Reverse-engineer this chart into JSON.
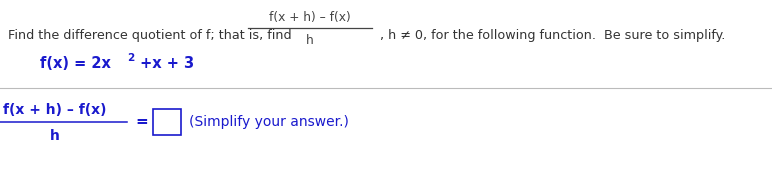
{
  "bg_color": "#ffffff",
  "text_color_black": "#333333",
  "text_color_blue": "#1a1acd",
  "text_color_frac_top": "#444444",
  "line1_black": "Find the difference quotient of f; that is, find",
  "line1_frac_num": "f(x + h) – f(x)",
  "line1_frac_den": "h",
  "line1_black2": ", h ≠ 0, for the following function.  Be sure to simplify.",
  "func_prefix": "f(x) = 2x",
  "func_sup": "2",
  "func_suffix": " +x + 3",
  "bottom_num": "f(x + h) – f(x)",
  "bottom_den": "h",
  "simplify": "(Simplify your answer.)",
  "figsize": [
    7.72,
    1.81
  ],
  "dpi": 100
}
